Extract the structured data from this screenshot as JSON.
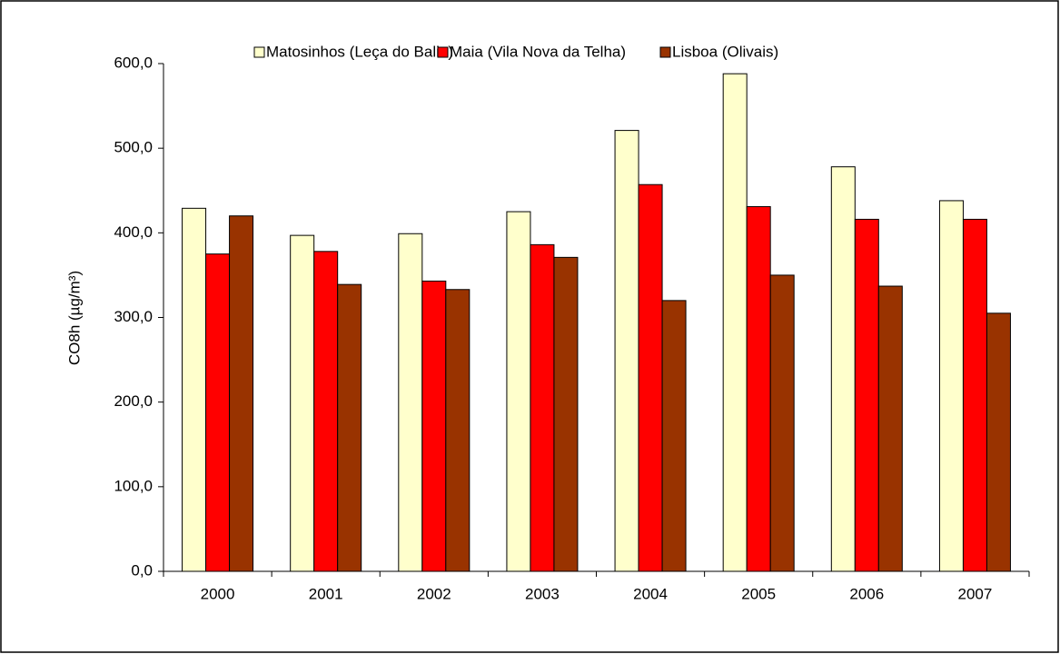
{
  "chart_data": {
    "type": "bar",
    "y_label": "CO8h (µg/m³)",
    "categories": [
      "2000",
      "2001",
      "2002",
      "2003",
      "2004",
      "2005",
      "2006",
      "2007"
    ],
    "series": [
      {
        "name": "Matosinhos (Leça do Balio)",
        "color": "#ffffcc",
        "values": [
          429,
          397,
          399,
          425,
          521,
          588,
          478,
          438
        ]
      },
      {
        "name": "Maia (Vila Nova da Telha)",
        "color": "#ff0000",
        "values": [
          375,
          378,
          343,
          386,
          457,
          431,
          416,
          416
        ]
      },
      {
        "name": "Lisboa (Olivais)",
        "color": "#993300",
        "values": [
          420,
          339,
          333,
          371,
          320,
          350,
          337,
          305
        ]
      }
    ],
    "ylim": [
      0,
      600
    ],
    "yticks": [
      {
        "value": 0,
        "label": "0,0"
      },
      {
        "value": 100,
        "label": "100,0"
      },
      {
        "value": 200,
        "label": "200,0"
      },
      {
        "value": 300,
        "label": "300,0"
      },
      {
        "value": 400,
        "label": "400,0"
      },
      {
        "value": 500,
        "label": "500,0"
      },
      {
        "value": 600,
        "label": "600,0"
      }
    ],
    "legend": "top"
  }
}
